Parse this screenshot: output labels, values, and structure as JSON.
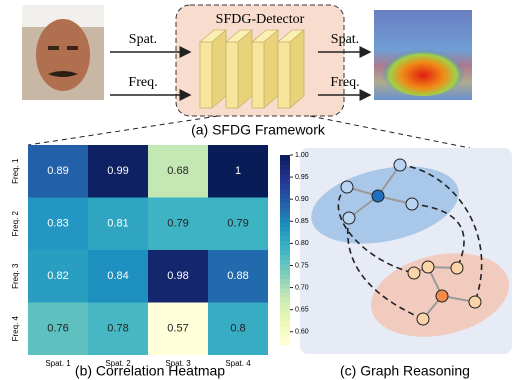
{
  "framework": {
    "detector_label": "SFDG-Detector",
    "inputs": [
      "Spat.",
      "Freq."
    ],
    "outputs": [
      "Spat.",
      "Freq."
    ],
    "caption": "(a)  SFDG Framework"
  },
  "chart_data": {
    "type": "heatmap",
    "rows": [
      "Freq. 1",
      "Freq. 2",
      "Freq. 3",
      "Freq. 4"
    ],
    "columns": [
      "Spat. 1",
      "Spat. 2",
      "Spat. 3",
      "Spat. 4"
    ],
    "values": [
      [
        0.89,
        0.99,
        0.68,
        1
      ],
      [
        0.83,
        0.81,
        0.79,
        0.79
      ],
      [
        0.82,
        0.84,
        0.98,
        0.88
      ],
      [
        0.76,
        0.78,
        0.57,
        0.8
      ]
    ],
    "clim": [
      0.57,
      1.0
    ],
    "colormap": [
      "#ffffd9",
      "#edf8b1",
      "#c7e9b4",
      "#7fcdbb",
      "#41b6c4",
      "#1d91c0",
      "#225ea8",
      "#253494",
      "#081d58"
    ],
    "colorbar_ticks": [
      {
        "value": 0.6,
        "label": "0.60"
      },
      {
        "value": 0.65,
        "label": "0.65"
      },
      {
        "value": 0.7,
        "label": "0.70"
      },
      {
        "value": 0.75,
        "label": "0.75"
      },
      {
        "value": 0.8,
        "label": "0.80"
      },
      {
        "value": 0.85,
        "label": "0.85"
      },
      {
        "value": 0.9,
        "label": "0.90"
      },
      {
        "value": 0.95,
        "label": "0.95"
      },
      {
        "value": 1.0,
        "label": "1.00"
      }
    ],
    "caption": "(b)  Correlation Heatmap"
  },
  "graph": {
    "caption": "(c)  Graph Reasoning"
  }
}
